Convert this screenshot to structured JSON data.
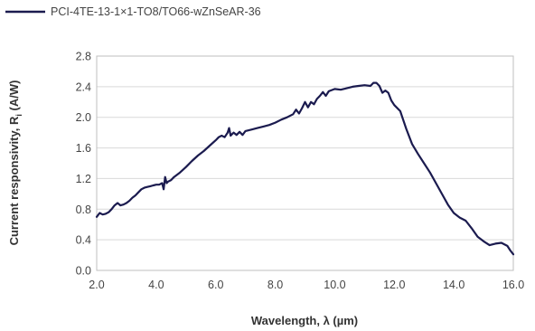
{
  "chart_data": {
    "type": "line",
    "xlabel": "Wavelength, λ (µm)",
    "ylabel_main": "Current responsivity, R",
    "ylabel_sub": "i",
    "ylabel_tail": " (A/W)",
    "xlim": [
      2.0,
      16.0
    ],
    "ylim": [
      0.0,
      2.8
    ],
    "xticks": [
      "2.0",
      "4.0",
      "6.0",
      "8.0",
      "10.0",
      "12.0",
      "14.0",
      "16.0"
    ],
    "yticks": [
      "0.0",
      "0.4",
      "0.8",
      "1.2",
      "1.6",
      "2.0",
      "2.4",
      "2.8"
    ],
    "grid": "horizontal",
    "legend_position": "top-left",
    "series": [
      {
        "name": "PCI-4TE-13-1×1-TO8/TO66-wZnSeAR-36",
        "color": "#1b1b4f",
        "points": [
          [
            2.0,
            0.7
          ],
          [
            2.1,
            0.75
          ],
          [
            2.2,
            0.73
          ],
          [
            2.3,
            0.74
          ],
          [
            2.4,
            0.76
          ],
          [
            2.5,
            0.8
          ],
          [
            2.6,
            0.85
          ],
          [
            2.7,
            0.88
          ],
          [
            2.8,
            0.85
          ],
          [
            2.9,
            0.86
          ],
          [
            3.0,
            0.88
          ],
          [
            3.1,
            0.91
          ],
          [
            3.2,
            0.95
          ],
          [
            3.3,
            0.98
          ],
          [
            3.4,
            1.02
          ],
          [
            3.5,
            1.06
          ],
          [
            3.6,
            1.08
          ],
          [
            3.7,
            1.09
          ],
          [
            3.8,
            1.1
          ],
          [
            3.9,
            1.11
          ],
          [
            4.0,
            1.12
          ],
          [
            4.1,
            1.12
          ],
          [
            4.2,
            1.14
          ],
          [
            4.25,
            1.06
          ],
          [
            4.3,
            1.22
          ],
          [
            4.35,
            1.14
          ],
          [
            4.4,
            1.16
          ],
          [
            4.5,
            1.18
          ],
          [
            4.6,
            1.22
          ],
          [
            4.8,
            1.28
          ],
          [
            5.0,
            1.35
          ],
          [
            5.2,
            1.43
          ],
          [
            5.4,
            1.5
          ],
          [
            5.6,
            1.56
          ],
          [
            5.8,
            1.63
          ],
          [
            6.0,
            1.7
          ],
          [
            6.1,
            1.74
          ],
          [
            6.2,
            1.76
          ],
          [
            6.3,
            1.74
          ],
          [
            6.4,
            1.8
          ],
          [
            6.45,
            1.86
          ],
          [
            6.5,
            1.76
          ],
          [
            6.6,
            1.8
          ],
          [
            6.7,
            1.77
          ],
          [
            6.8,
            1.81
          ],
          [
            6.9,
            1.77
          ],
          [
            7.0,
            1.82
          ],
          [
            7.2,
            1.84
          ],
          [
            7.4,
            1.86
          ],
          [
            7.6,
            1.88
          ],
          [
            7.8,
            1.9
          ],
          [
            8.0,
            1.93
          ],
          [
            8.2,
            1.97
          ],
          [
            8.4,
            2.0
          ],
          [
            8.6,
            2.04
          ],
          [
            8.7,
            2.1
          ],
          [
            8.8,
            2.05
          ],
          [
            8.9,
            2.12
          ],
          [
            9.0,
            2.2
          ],
          [
            9.1,
            2.13
          ],
          [
            9.2,
            2.2
          ],
          [
            9.3,
            2.17
          ],
          [
            9.4,
            2.24
          ],
          [
            9.5,
            2.28
          ],
          [
            9.6,
            2.33
          ],
          [
            9.7,
            2.28
          ],
          [
            9.8,
            2.34
          ],
          [
            10.0,
            2.37
          ],
          [
            10.2,
            2.36
          ],
          [
            10.4,
            2.38
          ],
          [
            10.6,
            2.4
          ],
          [
            10.8,
            2.41
          ],
          [
            11.0,
            2.42
          ],
          [
            11.2,
            2.41
          ],
          [
            11.3,
            2.45
          ],
          [
            11.4,
            2.45
          ],
          [
            11.5,
            2.41
          ],
          [
            11.6,
            2.32
          ],
          [
            11.7,
            2.35
          ],
          [
            11.8,
            2.32
          ],
          [
            11.9,
            2.22
          ],
          [
            12.0,
            2.16
          ],
          [
            12.2,
            2.08
          ],
          [
            12.4,
            1.85
          ],
          [
            12.6,
            1.65
          ],
          [
            12.8,
            1.52
          ],
          [
            13.0,
            1.4
          ],
          [
            13.2,
            1.28
          ],
          [
            13.4,
            1.14
          ],
          [
            13.6,
            1.0
          ],
          [
            13.8,
            0.86
          ],
          [
            14.0,
            0.75
          ],
          [
            14.2,
            0.69
          ],
          [
            14.4,
            0.65
          ],
          [
            14.6,
            0.55
          ],
          [
            14.8,
            0.44
          ],
          [
            15.0,
            0.38
          ],
          [
            15.2,
            0.33
          ],
          [
            15.4,
            0.35
          ],
          [
            15.6,
            0.36
          ],
          [
            15.8,
            0.32
          ],
          [
            15.9,
            0.26
          ],
          [
            16.0,
            0.21
          ]
        ]
      }
    ]
  }
}
